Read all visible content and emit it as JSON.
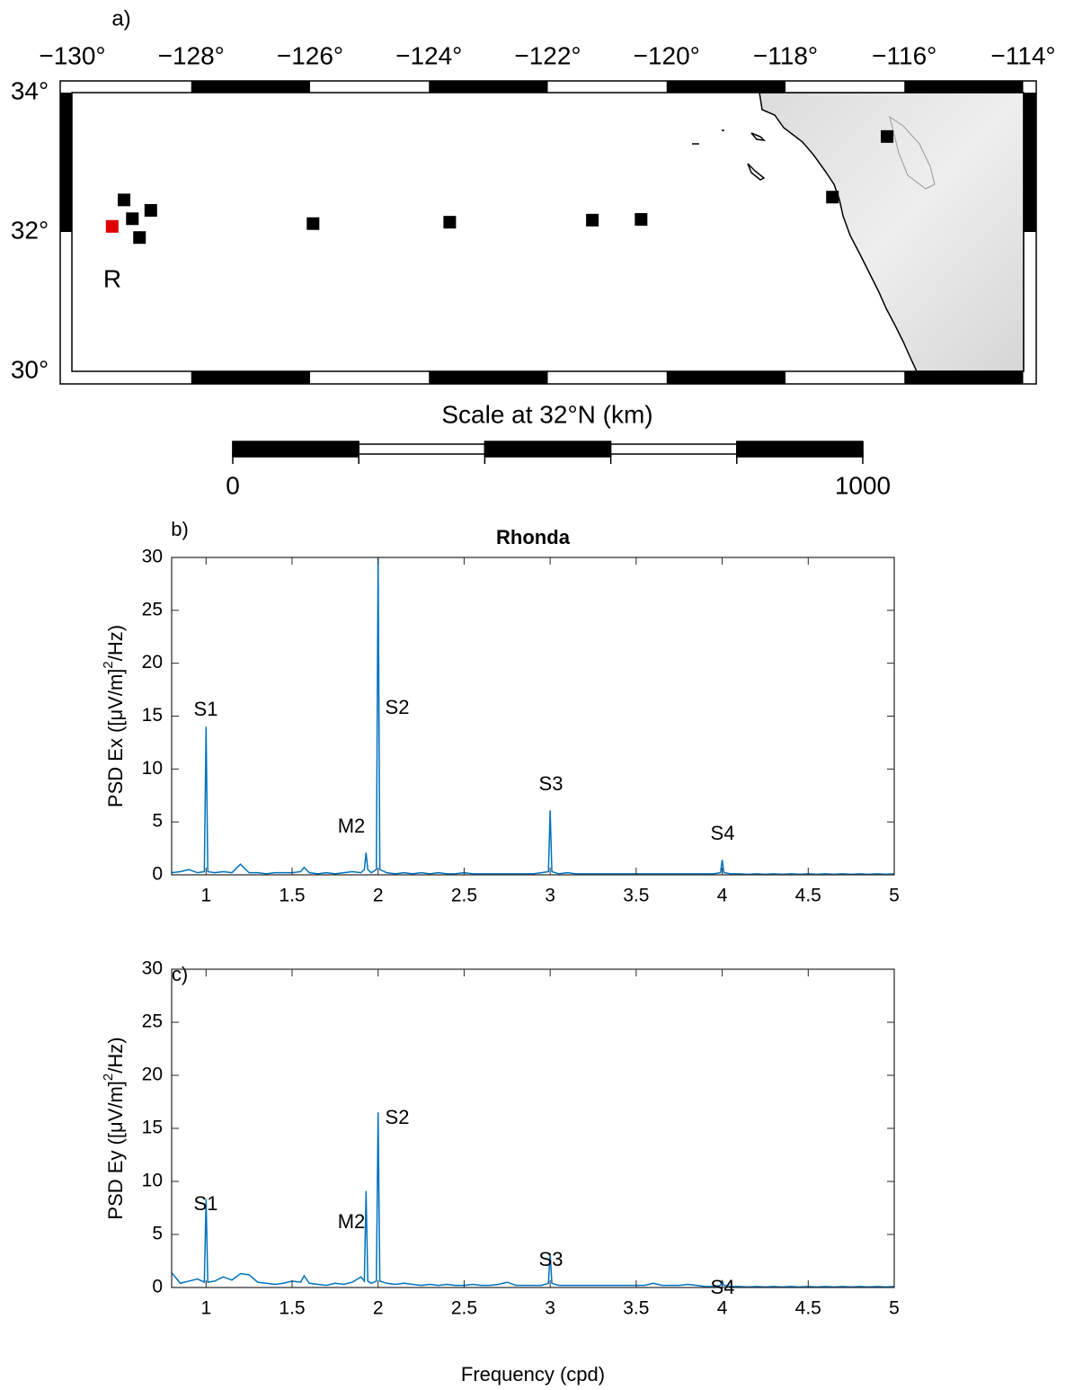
{
  "chart_data": [
    {
      "type": "map",
      "panel_label": "a)",
      "xlim": [
        -130,
        -114
      ],
      "ylim": [
        30,
        34
      ],
      "xticks": [
        {
          "value": -130,
          "label": "−130°"
        },
        {
          "value": -128,
          "label": "−128°"
        },
        {
          "value": -126,
          "label": "−126°"
        },
        {
          "value": -124,
          "label": "−124°"
        },
        {
          "value": -122,
          "label": "−122°"
        },
        {
          "value": -120,
          "label": "−120°"
        },
        {
          "value": -118,
          "label": "−118°"
        },
        {
          "value": -116,
          "label": "−116°"
        },
        {
          "value": -114,
          "label": "−114°"
        }
      ],
      "yticks": [
        {
          "value": 34,
          "label": "34°"
        },
        {
          "value": 32,
          "label": "32°"
        },
        {
          "value": 30,
          "label": "30°"
        }
      ],
      "series": [
        {
          "color": "#e00000",
          "x": [
            -129.33
          ],
          "y": [
            32.08
          ]
        },
        {
          "color": "#000000",
          "x": [
            -129.13,
            -128.99,
            -128.68,
            -128.87,
            -125.95,
            -123.65,
            -121.25,
            -120.43,
            -117.21,
            -116.29
          ],
          "y": [
            32.46,
            32.19,
            32.31,
            31.92,
            32.12,
            32.14,
            32.17,
            32.18,
            32.5,
            33.37
          ]
        }
      ],
      "annotations": [
        "R"
      ],
      "scalebar": {
        "label": "Scale at 32°N (km)",
        "xlim": [
          0,
          1000
        ],
        "xticks": [
          0,
          1000
        ]
      }
    },
    {
      "type": "line",
      "panel_label": "b)",
      "title": "Rhonda",
      "ylabel": [
        "PSD Ex ([μV/m]",
        "2",
        "/Hz)"
      ],
      "xlim": [
        0.8,
        5
      ],
      "ylim": [
        0,
        30
      ],
      "xticks": [
        1,
        1.5,
        2,
        2.5,
        3,
        3.5,
        4,
        4.5,
        5
      ],
      "yticks": [
        0,
        5,
        10,
        15,
        20,
        25,
        30
      ],
      "x": [
        0.8,
        0.85,
        0.9,
        0.95,
        0.99,
        1.0,
        1.01,
        1.05,
        1.1,
        1.15,
        1.2,
        1.25,
        1.3,
        1.35,
        1.4,
        1.45,
        1.5,
        1.55,
        1.57,
        1.6,
        1.65,
        1.7,
        1.75,
        1.8,
        1.85,
        1.9,
        1.92,
        1.93,
        1.94,
        1.96,
        1.99,
        2.0,
        2.01,
        2.05,
        2.1,
        2.15,
        2.2,
        2.25,
        2.3,
        2.35,
        2.4,
        2.45,
        2.5,
        2.55,
        2.6,
        2.65,
        2.7,
        2.75,
        2.8,
        2.85,
        2.9,
        2.95,
        2.99,
        3.0,
        3.01,
        3.05,
        3.1,
        3.15,
        3.2,
        3.25,
        3.3,
        3.35,
        3.4,
        3.45,
        3.5,
        3.55,
        3.6,
        3.65,
        3.7,
        3.75,
        3.8,
        3.85,
        3.9,
        3.95,
        3.99,
        4.0,
        4.01,
        4.05,
        4.1,
        4.15,
        4.2,
        4.25,
        4.3,
        4.35,
        4.4,
        4.45,
        4.5,
        4.55,
        4.6,
        4.65,
        4.7,
        4.75,
        4.8,
        4.85,
        4.9,
        4.95,
        5.0
      ],
      "series": [
        {
          "color": "#0072bd",
          "values": [
            0.2,
            0.3,
            0.5,
            0.2,
            0.3,
            14,
            0.3,
            0.2,
            0.3,
            0.2,
            1.0,
            0.2,
            0.2,
            0.1,
            0.2,
            0.2,
            0.2,
            0.3,
            0.7,
            0.2,
            0.1,
            0.2,
            0.1,
            0.2,
            0.3,
            0.2,
            0.5,
            2.1,
            0.5,
            0.2,
            0.5,
            30,
            0.5,
            0.2,
            0.1,
            0.2,
            0.1,
            0.2,
            0.1,
            0.2,
            0.1,
            0.1,
            0.2,
            0.1,
            0.1,
            0.1,
            0.1,
            0.1,
            0.1,
            0.1,
            0.1,
            0.2,
            0.3,
            6.1,
            0.3,
            0.1,
            0.2,
            0.1,
            0.1,
            0.1,
            0.1,
            0.1,
            0.1,
            0.1,
            0.1,
            0.1,
            0.1,
            0.1,
            0.1,
            0.1,
            0.1,
            0.1,
            0.1,
            0.1,
            0.2,
            1.4,
            0.2,
            0.1,
            0.1,
            0.05,
            0.1,
            0.05,
            0.1,
            0.05,
            0.1,
            0.05,
            0.1,
            0.05,
            0.1,
            0.05,
            0.1,
            0.05,
            0.1,
            0.05,
            0.1,
            0.05,
            0.1
          ]
        }
      ],
      "annotations": [
        "S1",
        "M2",
        "S2",
        "S3",
        "S4"
      ]
    },
    {
      "type": "line",
      "panel_label": "c)",
      "xlabel": "Frequency (cpd)",
      "ylabel": [
        "PSD Ey ([μV/m]",
        "2",
        "/Hz)"
      ],
      "xlim": [
        0.8,
        5
      ],
      "ylim": [
        0,
        30
      ],
      "xticks": [
        1,
        1.5,
        2,
        2.5,
        3,
        3.5,
        4,
        4.5,
        5
      ],
      "yticks": [
        0,
        5,
        10,
        15,
        20,
        25,
        30
      ],
      "x": [
        0.8,
        0.85,
        0.9,
        0.95,
        0.99,
        1.0,
        1.01,
        1.05,
        1.1,
        1.15,
        1.2,
        1.25,
        1.3,
        1.35,
        1.4,
        1.45,
        1.5,
        1.55,
        1.57,
        1.6,
        1.65,
        1.7,
        1.75,
        1.8,
        1.85,
        1.9,
        1.92,
        1.93,
        1.94,
        1.96,
        1.99,
        2.0,
        2.01,
        2.05,
        2.1,
        2.15,
        2.2,
        2.25,
        2.3,
        2.35,
        2.4,
        2.45,
        2.5,
        2.55,
        2.6,
        2.65,
        2.7,
        2.75,
        2.8,
        2.85,
        2.9,
        2.95,
        2.99,
        3.0,
        3.01,
        3.05,
        3.1,
        3.15,
        3.2,
        3.25,
        3.3,
        3.35,
        3.4,
        3.45,
        3.5,
        3.55,
        3.6,
        3.65,
        3.7,
        3.75,
        3.8,
        3.85,
        3.9,
        3.95,
        3.99,
        4.0,
        4.01,
        4.05,
        4.1,
        4.15,
        4.2,
        4.25,
        4.3,
        4.35,
        4.4,
        4.45,
        4.5,
        4.55,
        4.6,
        4.65,
        4.7,
        4.75,
        4.8,
        4.85,
        4.9,
        4.95,
        5.0
      ],
      "series": [
        {
          "color": "#0072bd",
          "values": [
            1.4,
            0.4,
            0.6,
            0.8,
            0.5,
            8.3,
            0.5,
            0.6,
            1.0,
            0.7,
            1.3,
            1.2,
            0.5,
            0.4,
            0.3,
            0.4,
            0.6,
            0.5,
            1.1,
            0.4,
            0.3,
            0.2,
            0.4,
            0.3,
            0.5,
            1.0,
            0.6,
            9.1,
            0.6,
            0.4,
            0.6,
            16.5,
            0.6,
            0.4,
            0.3,
            0.4,
            0.3,
            0.2,
            0.3,
            0.2,
            0.3,
            0.2,
            0.2,
            0.3,
            0.2,
            0.2,
            0.3,
            0.5,
            0.2,
            0.2,
            0.2,
            0.2,
            0.4,
            3.2,
            0.4,
            0.2,
            0.2,
            0.2,
            0.2,
            0.2,
            0.2,
            0.2,
            0.2,
            0.2,
            0.2,
            0.2,
            0.4,
            0.2,
            0.2,
            0.2,
            0.3,
            0.2,
            0.1,
            0.1,
            0.2,
            0.6,
            0.2,
            0.1,
            0.1,
            0.05,
            0.1,
            0.05,
            0.1,
            0.05,
            0.1,
            0.05,
            0.1,
            0.05,
            0.1,
            0.05,
            0.1,
            0.05,
            0.1,
            0.05,
            0.1,
            0.05,
            0.1
          ]
        }
      ],
      "annotations": [
        "S1",
        "M2",
        "S2",
        "S3",
        "S4"
      ]
    }
  ]
}
